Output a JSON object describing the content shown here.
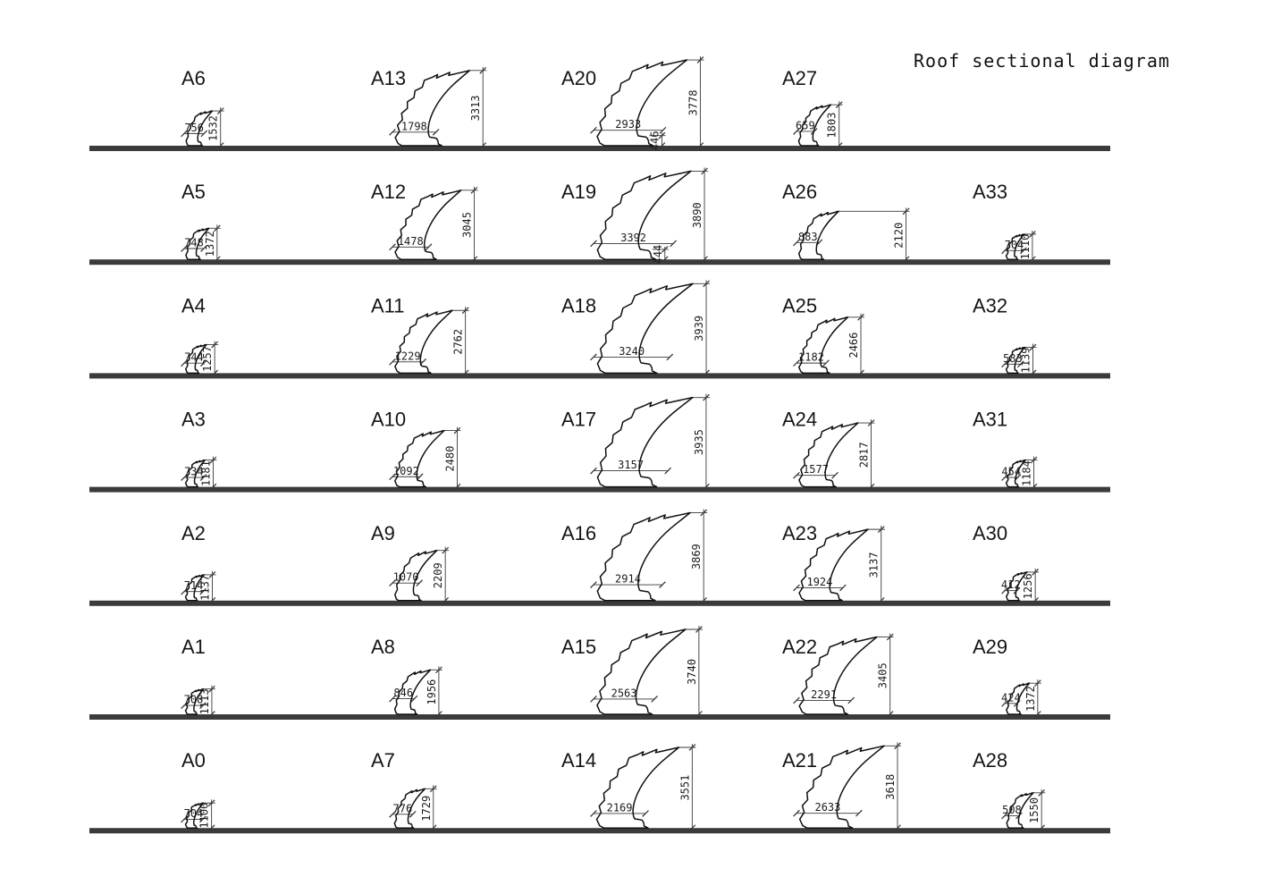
{
  "title": "Roof sectional diagram",
  "colors": {
    "profile_line": "#101010",
    "ground_line": "#3b3b3b",
    "dim_line": "#3a3a3a",
    "text": "#1c1c1c"
  },
  "rows": [
    {
      "profiles": [
        {
          "label": "A6",
          "width_dim": "756",
          "height_dim": "1532"
        },
        {
          "label": "A13",
          "width_dim": "1798",
          "height_dim": "3313"
        },
        {
          "label": "A20",
          "width_dim": "2933",
          "height_dim": "3778",
          "base_dim": "446"
        },
        {
          "label": "A27",
          "width_dim": "659",
          "height_dim": "1803"
        }
      ]
    },
    {
      "profiles": [
        {
          "label": "A5",
          "width_dim": "748",
          "height_dim": "1372"
        },
        {
          "label": "A12",
          "width_dim": "1478",
          "height_dim": "3045"
        },
        {
          "label": "A19",
          "width_dim": "3392",
          "height_dim": "3890",
          "base_dim": "444"
        },
        {
          "label": "A26",
          "width_dim": "883",
          "height_dim": "2120",
          "offset_height_dim": true
        },
        {
          "label": "A33",
          "width_dim": "704",
          "height_dim": "1110"
        }
      ]
    },
    {
      "profiles": [
        {
          "label": "A4",
          "width_dim": "744",
          "height_dim": "1257"
        },
        {
          "label": "A11",
          "width_dim": "1229",
          "height_dim": "2762"
        },
        {
          "label": "A18",
          "width_dim": "3240",
          "height_dim": "3939"
        },
        {
          "label": "A25",
          "width_dim": "1182",
          "height_dim": "2466"
        },
        {
          "label": "A32",
          "width_dim": "583",
          "height_dim": "1139"
        }
      ]
    },
    {
      "profiles": [
        {
          "label": "A3",
          "width_dim": "734",
          "height_dim": "1181"
        },
        {
          "label": "A10",
          "width_dim": "1092",
          "height_dim": "2480"
        },
        {
          "label": "A17",
          "width_dim": "3157",
          "height_dim": "3935"
        },
        {
          "label": "A24",
          "width_dim": "1577",
          "height_dim": "2817"
        },
        {
          "label": "A31",
          "width_dim": "454",
          "height_dim": "1184"
        }
      ]
    },
    {
      "profiles": [
        {
          "label": "A2",
          "width_dim": "714",
          "height_dim": "1137"
        },
        {
          "label": "A9",
          "width_dim": "1070",
          "height_dim": "2209"
        },
        {
          "label": "A16",
          "width_dim": "2914",
          "height_dim": "3869"
        },
        {
          "label": "A23",
          "width_dim": "1924",
          "height_dim": "3137"
        },
        {
          "label": "A30",
          "width_dim": "412",
          "height_dim": "1256"
        }
      ]
    },
    {
      "profiles": [
        {
          "label": "A1",
          "width_dim": "708",
          "height_dim": "1113"
        },
        {
          "label": "A8",
          "width_dim": "846",
          "height_dim": "1956"
        },
        {
          "label": "A15",
          "width_dim": "2563",
          "height_dim": "3740"
        },
        {
          "label": "A22",
          "width_dim": "2291",
          "height_dim": "3405"
        },
        {
          "label": "A29",
          "width_dim": "424",
          "height_dim": "1372"
        }
      ]
    },
    {
      "profiles": [
        {
          "label": "A0",
          "width_dim": "704",
          "height_dim": "1100"
        },
        {
          "label": "A7",
          "width_dim": "776",
          "height_dim": "1729"
        },
        {
          "label": "A14",
          "width_dim": "2169",
          "height_dim": "3551"
        },
        {
          "label": "A21",
          "width_dim": "2633",
          "height_dim": "3618"
        },
        {
          "label": "A28",
          "width_dim": "508",
          "height_dim": "1550"
        }
      ]
    }
  ]
}
